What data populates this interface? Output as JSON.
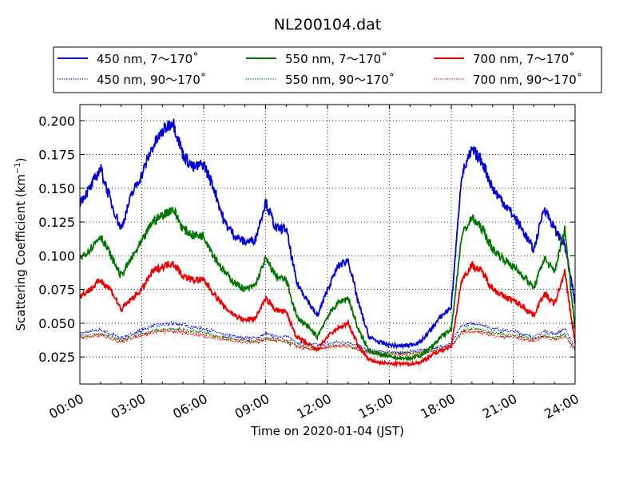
{
  "chart_data": {
    "type": "line",
    "title": "NL200104.dat",
    "xlabel": "Time on 2020-01-04 (JST)",
    "ylabel": "Scattering Coefficient (km",
    "ylabel_superscript": "−1",
    "ylabel_suffix": ")",
    "xlim": [
      0,
      24
    ],
    "ylim": [
      0.005,
      0.212
    ],
    "xticks": [
      0,
      3,
      6,
      9,
      12,
      15,
      18,
      21,
      24
    ],
    "xtick_labels": [
      "00:00",
      "03:00",
      "06:00",
      "09:00",
      "12:00",
      "15:00",
      "18:00",
      "21:00",
      "24:00"
    ],
    "yticks": [
      0.025,
      0.05,
      0.075,
      0.1,
      0.125,
      0.15,
      0.175,
      0.2
    ],
    "ytick_labels": [
      "0.025",
      "0.050",
      "0.075",
      "0.100",
      "0.125",
      "0.150",
      "0.175",
      "0.200"
    ],
    "grid": true,
    "legend_position": "top, above plot, 3 columns",
    "x": [
      0,
      0.5,
      1,
      1.5,
      2,
      2.5,
      3,
      3.5,
      4,
      4.5,
      5,
      5.5,
      6,
      6.5,
      7,
      7.5,
      8,
      8.5,
      9,
      9.5,
      10,
      10.5,
      11,
      11.5,
      12,
      12.5,
      13,
      13.5,
      14,
      14.5,
      15,
      15.5,
      16,
      16.5,
      17,
      17.5,
      18,
      18.5,
      19,
      19.5,
      20,
      20.5,
      21,
      21.5,
      22,
      22.5,
      23,
      23.5,
      24
    ],
    "series": [
      {
        "name": "450 nm, 7～170˚",
        "color": "#0000dd",
        "style": "solid",
        "values": [
          0.14,
          0.15,
          0.165,
          0.14,
          0.12,
          0.145,
          0.16,
          0.18,
          0.192,
          0.2,
          0.175,
          0.165,
          0.168,
          0.15,
          0.125,
          0.115,
          0.11,
          0.112,
          0.14,
          0.12,
          0.12,
          0.08,
          0.068,
          0.055,
          0.075,
          0.092,
          0.097,
          0.065,
          0.04,
          0.036,
          0.034,
          0.033,
          0.034,
          0.036,
          0.045,
          0.055,
          0.062,
          0.16,
          0.178,
          0.17,
          0.15,
          0.14,
          0.13,
          0.118,
          0.104,
          0.136,
          0.12,
          0.108,
          0.065
        ]
      },
      {
        "name": "550 nm, 7～170˚",
        "color": "#007700",
        "style": "solid",
        "values": [
          0.098,
          0.105,
          0.115,
          0.1,
          0.085,
          0.098,
          0.11,
          0.125,
          0.13,
          0.135,
          0.12,
          0.115,
          0.115,
          0.1,
          0.088,
          0.08,
          0.075,
          0.078,
          0.098,
          0.085,
          0.082,
          0.055,
          0.048,
          0.04,
          0.055,
          0.065,
          0.069,
          0.045,
          0.03,
          0.027,
          0.025,
          0.024,
          0.024,
          0.026,
          0.032,
          0.04,
          0.045,
          0.115,
          0.128,
          0.12,
          0.105,
          0.098,
          0.092,
          0.085,
          0.076,
          0.098,
          0.088,
          0.12,
          0.046
        ]
      },
      {
        "name": "700 nm, 7～170˚",
        "color": "#ee0000",
        "style": "solid",
        "values": [
          0.07,
          0.075,
          0.082,
          0.075,
          0.06,
          0.068,
          0.075,
          0.088,
          0.092,
          0.095,
          0.085,
          0.082,
          0.082,
          0.072,
          0.062,
          0.056,
          0.052,
          0.054,
          0.068,
          0.06,
          0.058,
          0.04,
          0.035,
          0.03,
          0.04,
          0.046,
          0.05,
          0.033,
          0.023,
          0.021,
          0.02,
          0.02,
          0.02,
          0.021,
          0.026,
          0.03,
          0.033,
          0.082,
          0.093,
          0.088,
          0.076,
          0.07,
          0.067,
          0.062,
          0.056,
          0.072,
          0.064,
          0.088,
          0.035
        ]
      },
      {
        "name": "450 nm, 90～170˚",
        "color": "#0000dd",
        "style": "dotted",
        "values": [
          0.042,
          0.044,
          0.045,
          0.042,
          0.039,
          0.042,
          0.045,
          0.048,
          0.049,
          0.05,
          0.049,
          0.047,
          0.046,
          0.044,
          0.041,
          0.04,
          0.039,
          0.039,
          0.042,
          0.04,
          0.04,
          0.036,
          0.035,
          0.034,
          0.035,
          0.036,
          0.036,
          0.033,
          0.03,
          0.029,
          0.029,
          0.028,
          0.029,
          0.03,
          0.031,
          0.033,
          0.035,
          0.048,
          0.05,
          0.049,
          0.046,
          0.045,
          0.044,
          0.042,
          0.04,
          0.044,
          0.042,
          0.046,
          0.032
        ]
      },
      {
        "name": "550 nm, 90～170˚",
        "color": "#007700",
        "style": "dotted",
        "values": [
          0.04,
          0.041,
          0.042,
          0.04,
          0.037,
          0.04,
          0.042,
          0.044,
          0.045,
          0.046,
          0.045,
          0.044,
          0.043,
          0.041,
          0.039,
          0.038,
          0.037,
          0.037,
          0.039,
          0.038,
          0.037,
          0.034,
          0.032,
          0.031,
          0.033,
          0.034,
          0.034,
          0.031,
          0.029,
          0.028,
          0.028,
          0.028,
          0.028,
          0.029,
          0.03,
          0.031,
          0.033,
          0.044,
          0.046,
          0.045,
          0.043,
          0.042,
          0.041,
          0.04,
          0.038,
          0.041,
          0.039,
          0.042,
          0.031
        ]
      },
      {
        "name": "700 nm, 90～170˚",
        "color": "#ee0000",
        "style": "dotted",
        "values": [
          0.039,
          0.04,
          0.041,
          0.039,
          0.036,
          0.039,
          0.041,
          0.043,
          0.044,
          0.044,
          0.043,
          0.042,
          0.041,
          0.039,
          0.038,
          0.037,
          0.036,
          0.036,
          0.038,
          0.037,
          0.036,
          0.033,
          0.031,
          0.03,
          0.032,
          0.033,
          0.033,
          0.03,
          0.028,
          0.027,
          0.027,
          0.027,
          0.027,
          0.028,
          0.029,
          0.03,
          0.032,
          0.043,
          0.044,
          0.043,
          0.041,
          0.04,
          0.04,
          0.038,
          0.037,
          0.04,
          0.038,
          0.04,
          0.03
        ]
      }
    ],
    "legend_order": [
      0,
      1,
      2,
      3,
      4,
      5
    ]
  }
}
